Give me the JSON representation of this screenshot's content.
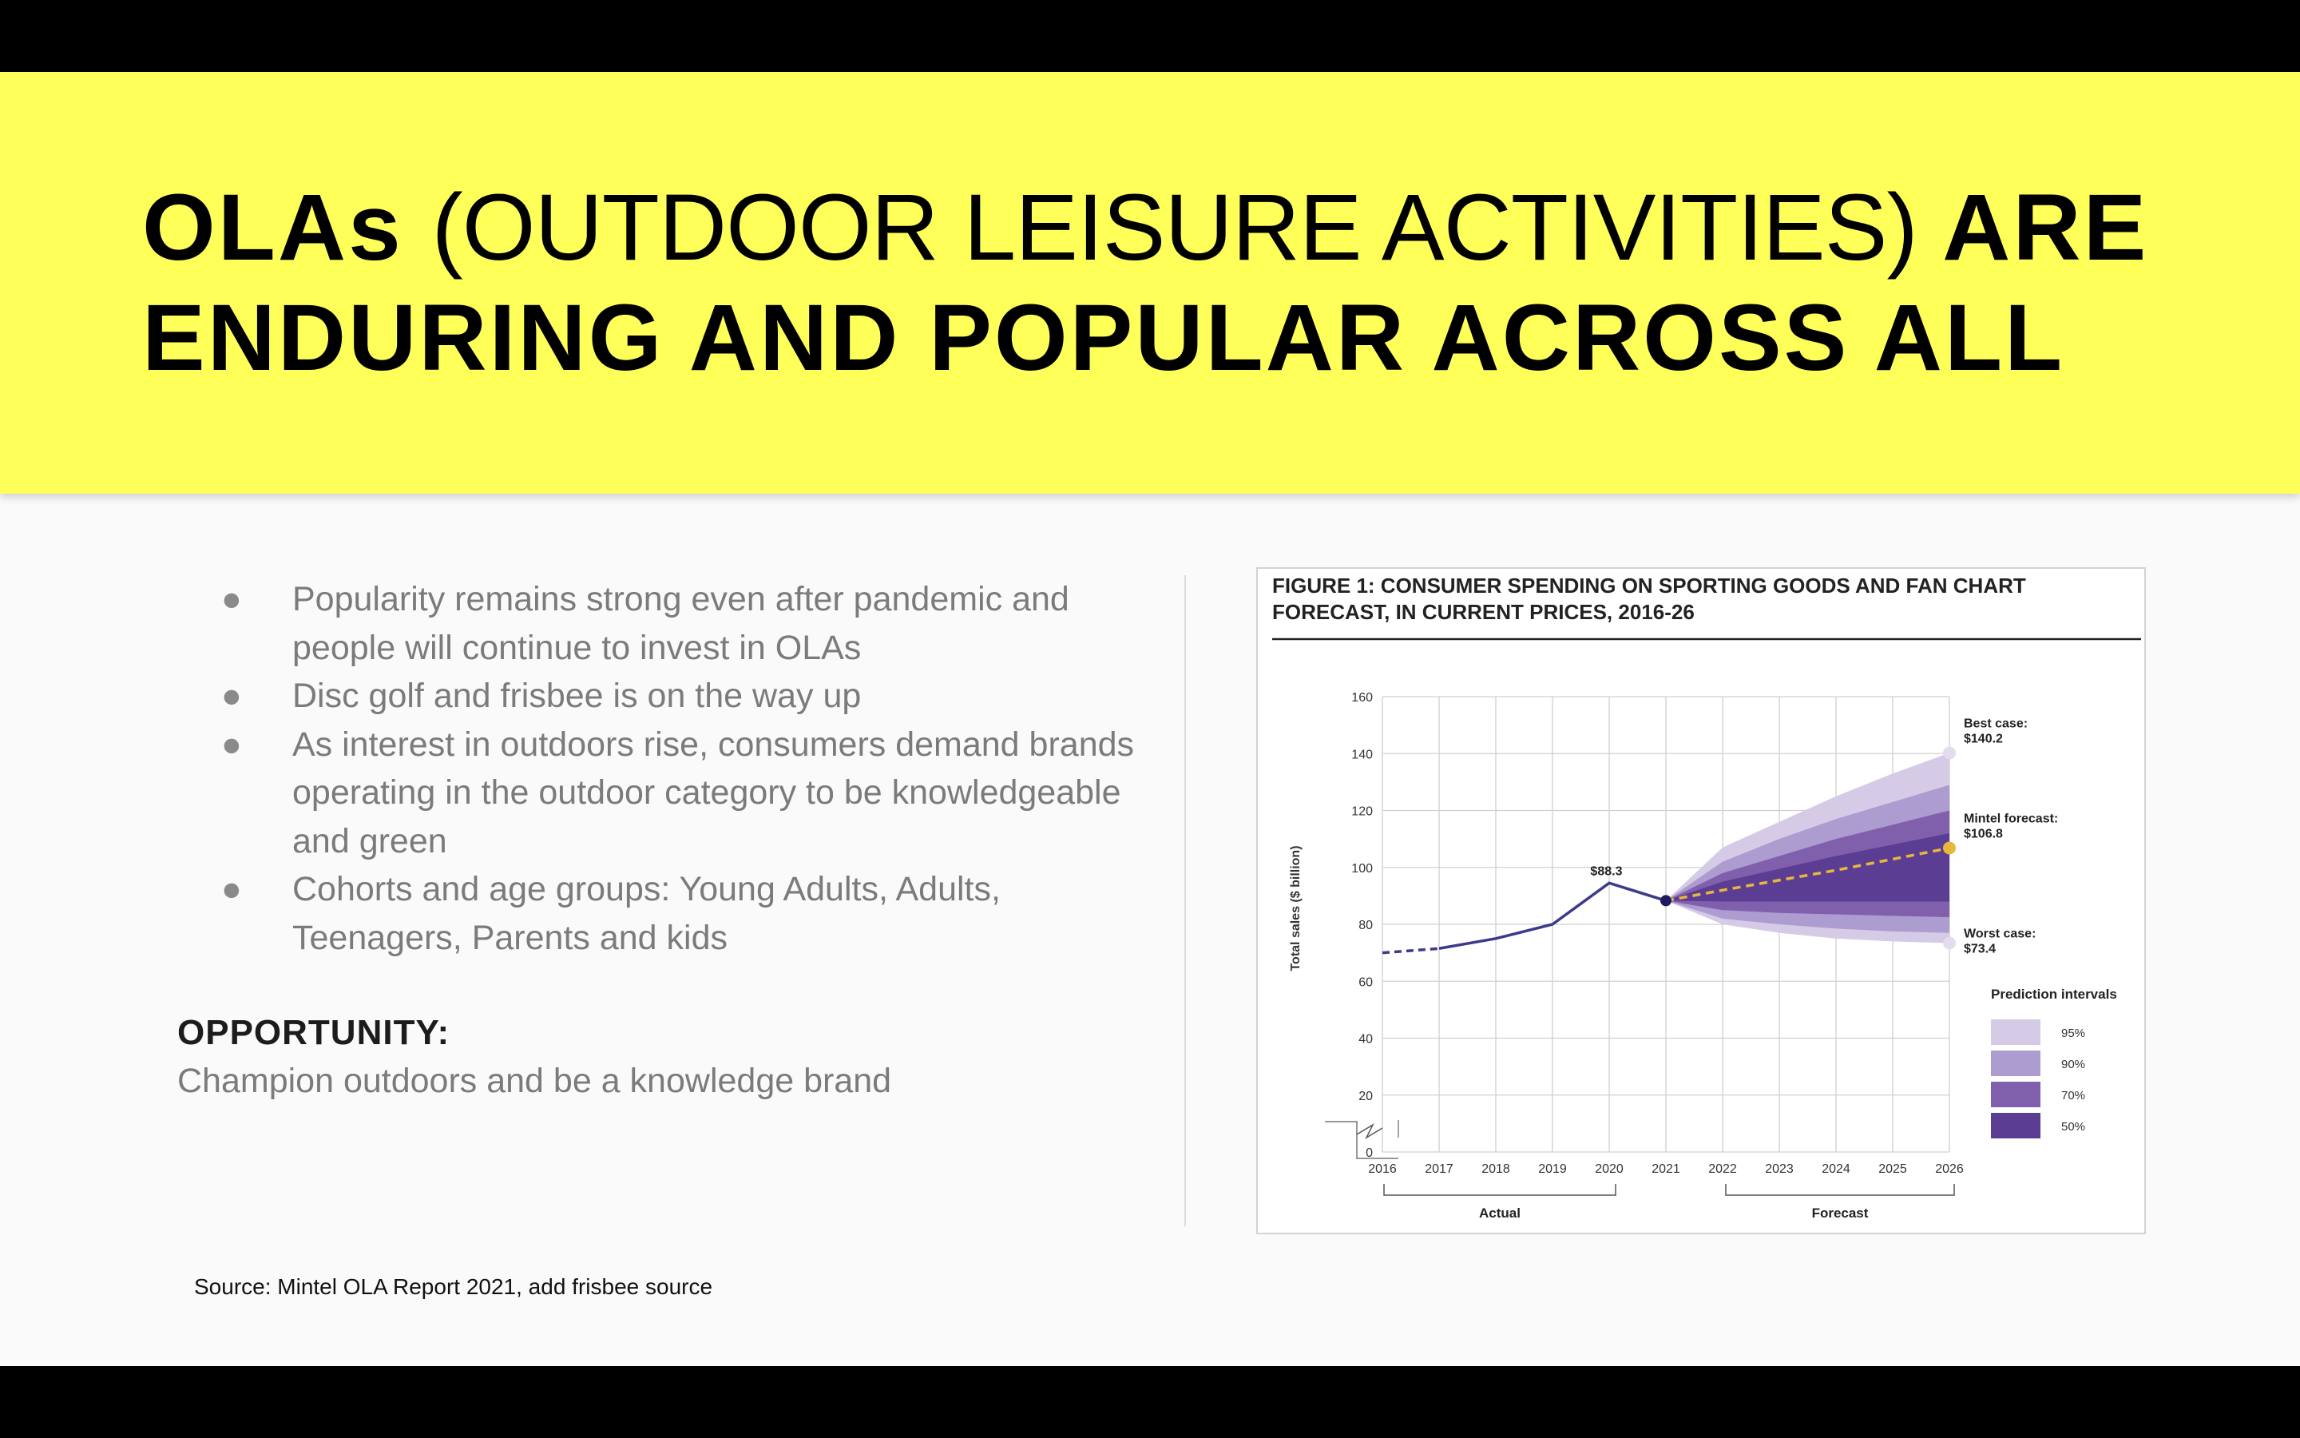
{
  "slide": {
    "title": {
      "part1": "OLAs",
      "part2": "(OUTDOOR LEISURE ACTIVITIES)",
      "part3": "ARE",
      "line2": "ENDURING AND POPULAR ACROSS ALL"
    },
    "bullets": [
      {
        "marker": "●",
        "lines": [
          "Popularity remains strong even after pandemic and",
          "people will continue to invest in OLAs"
        ]
      },
      {
        "marker": "●",
        "lines": [
          "Disc golf and frisbee is on the way up"
        ]
      },
      {
        "marker": "●",
        "lines": [
          "As interest in outdoors rise, consumers demand brands",
          "operating in the outdoor category to be knowledgeable",
          "and green"
        ]
      },
      {
        "marker": "●",
        "lines": [
          "Cohorts and age groups: Young Adults, Adults,",
          "Teenagers, Parents and kids"
        ]
      }
    ],
    "opportunity": {
      "heading": "OPPORTUNITY:",
      "text": "Champion outdoors and be a knowledge brand"
    },
    "source": "Source: Mintel OLA Report 2021, add frisbee source"
  },
  "chart_data": {
    "type": "line",
    "title_lines": [
      "FIGURE 1: CONSUMER SPENDING ON SPORTING GOODS AND FAN CHART",
      "FORECAST, IN CURRENT PRICES, 2016-26"
    ],
    "xlabel": "",
    "ylabel": "Total sales ($ billion)",
    "x": [
      2016,
      2017,
      2018,
      2019,
      2020,
      2021,
      2022,
      2023,
      2024,
      2025,
      2026
    ],
    "ylim": [
      0,
      160
    ],
    "yticks": [
      0,
      20,
      40,
      60,
      80,
      100,
      120,
      140,
      160
    ],
    "grid": true,
    "actual": [
      {
        "x": 2016,
        "y": 70
      },
      {
        "x": 2017,
        "y": 71.5
      },
      {
        "x": 2018,
        "y": 75
      },
      {
        "x": 2019,
        "y": 80
      },
      {
        "x": 2020,
        "y": 94.5
      },
      {
        "x": 2021,
        "y": 88.3
      }
    ],
    "forecast": {
      "x": [
        2021,
        2022,
        2023,
        2024,
        2025,
        2026
      ],
      "mintel": [
        88.3,
        92,
        95.5,
        99,
        102.9,
        106.8
      ],
      "bands": [
        {
          "name": "95%",
          "upper": [
            88.3,
            107,
            116,
            125,
            133,
            140.2
          ],
          "lower": [
            88.3,
            80,
            77,
            75,
            74,
            73.4
          ],
          "color": "#d6cbe6"
        },
        {
          "name": "90%",
          "upper": [
            88.3,
            102,
            110,
            117,
            123,
            129
          ],
          "lower": [
            88.3,
            82,
            80,
            78.5,
            77.5,
            77
          ],
          "color": "#ad9ccf"
        },
        {
          "name": "70%",
          "upper": [
            88.3,
            98,
            104,
            110,
            115,
            120
          ],
          "lower": [
            88.3,
            85,
            84,
            83.5,
            83,
            82.5
          ],
          "color": "#8060ac"
        },
        {
          "name": "50%",
          "upper": [
            88.3,
            95,
            99.5,
            104,
            108,
            112
          ],
          "lower": [
            88.3,
            88,
            88,
            88,
            88,
            88
          ],
          "color": "#5c3d94"
        }
      ]
    },
    "annotations": {
      "peak_label": "$88.3",
      "best_case": [
        "Best case:",
        "$140.2"
      ],
      "mintel_forecast": [
        "Mintel forecast:",
        "$106.8"
      ],
      "worst_case": [
        "Worst case:",
        "$73.4"
      ]
    },
    "legend": {
      "title": "Prediction intervals",
      "position": "right",
      "items": [
        "95%",
        "90%",
        "70%",
        "50%"
      ]
    },
    "brackets": {
      "actual": "Actual",
      "forecast": "Forecast"
    },
    "colors": {
      "line": "#3d3a8c",
      "forecast_line": "#e8b83c",
      "point": "#1f1a5c"
    }
  }
}
